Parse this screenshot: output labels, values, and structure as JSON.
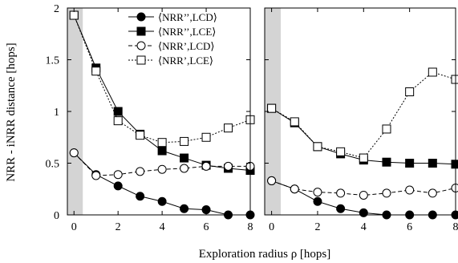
{
  "chart_data": {
    "type": "line",
    "ylabel": "NRR - iNRR distance [hops]",
    "xlabel": "Exploration radius  ρ  [hops]",
    "ylim": [
      0,
      2
    ],
    "xlim": [
      -0.3,
      8
    ],
    "y_ticks": [
      "0",
      "0.5",
      "1",
      "1.5",
      "2"
    ],
    "x_ticks": [
      "0",
      "2",
      "4",
      "6",
      "8"
    ],
    "shaded_band": [
      -0.3,
      0.4
    ],
    "legend_position": "top-right of left panel",
    "series_style": [
      {
        "marker": "filled-circle",
        "line": "solid"
      },
      {
        "marker": "filled-square",
        "line": "solid"
      },
      {
        "marker": "open-circle",
        "line": "dashed"
      },
      {
        "marker": "open-square",
        "line": "dotted"
      }
    ],
    "legend": [
      "⟨NRR’’,LCD⟩",
      "⟨NRR’’,LCE⟩",
      "⟨NRR’,LCD⟩",
      "⟨NRR’,LCE⟩"
    ],
    "panels": [
      {
        "x": [
          0,
          1,
          2,
          3,
          4,
          5,
          6,
          7,
          8
        ],
        "series": [
          {
            "name": "⟨NRR’’,LCD⟩",
            "values": [
              0.6,
              0.39,
              0.28,
              0.18,
              0.13,
              0.06,
              0.05,
              0.0,
              0.0
            ]
          },
          {
            "name": "⟨NRR’’,LCE⟩",
            "values": [
              1.93,
              1.42,
              1.0,
              0.78,
              0.62,
              0.55,
              0.48,
              0.45,
              0.43
            ]
          },
          {
            "name": "⟨NRR’,LCD⟩",
            "values": [
              0.6,
              0.38,
              0.39,
              0.42,
              0.44,
              0.45,
              0.47,
              0.47,
              0.47
            ]
          },
          {
            "name": "⟨NRR’,LCE⟩",
            "values": [
              1.93,
              1.39,
              0.91,
              0.77,
              0.7,
              0.71,
              0.75,
              0.84,
              0.92
            ]
          }
        ]
      },
      {
        "x": [
          0,
          1,
          2,
          3,
          4,
          5,
          6,
          7,
          8
        ],
        "series": [
          {
            "name": "⟨NRR’’,LCD⟩",
            "values": [
              0.33,
              0.25,
              0.13,
              0.06,
              0.02,
              0.0,
              0.0,
              0.0,
              0.0
            ]
          },
          {
            "name": "⟨NRR’’,LCE⟩",
            "values": [
              1.03,
              0.89,
              0.66,
              0.59,
              0.53,
              0.51,
              0.5,
              0.5,
              0.49
            ]
          },
          {
            "name": "⟨NRR’,LCD⟩",
            "values": [
              0.33,
              0.25,
              0.22,
              0.21,
              0.19,
              0.21,
              0.24,
              0.21,
              0.26
            ]
          },
          {
            "name": "⟨NRR’,LCE⟩",
            "values": [
              1.03,
              0.9,
              0.66,
              0.61,
              0.55,
              0.83,
              1.19,
              1.38,
              1.31
            ]
          }
        ]
      }
    ]
  }
}
